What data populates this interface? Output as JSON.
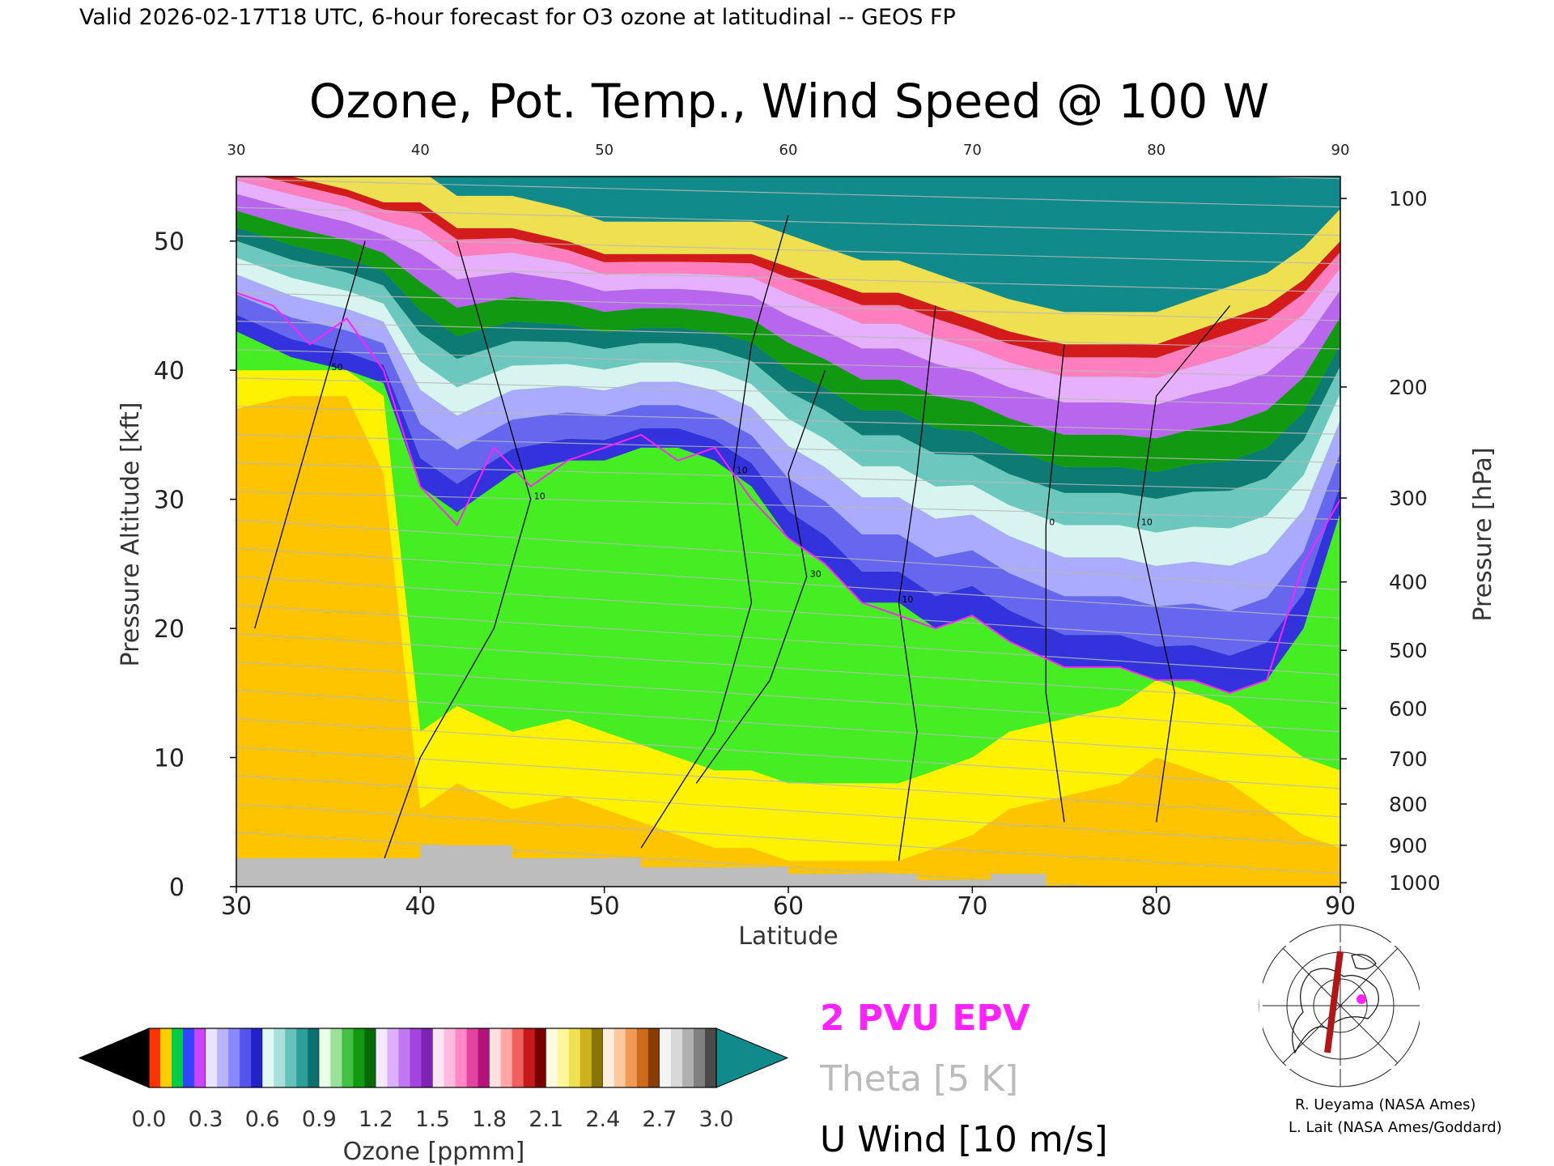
{
  "header": {
    "valid_line": "Valid 2026-02-17T18 UTC, 6-hour forecast for O3 ozone at latitudinal -- GEOS FP"
  },
  "chart_data": {
    "type": "heatmap",
    "title": "Ozone, Pot. Temp., Wind Speed @ 100 W",
    "xlabel": "Latitude",
    "ylabel": "Pressure Altitude [kft]",
    "y2label": "Pressure [hPa]",
    "xlim": [
      30,
      90
    ],
    "ylim": [
      0,
      55
    ],
    "x_ticks": [
      30,
      40,
      50,
      60,
      70,
      80,
      90
    ],
    "x_tick_labels": [
      "30",
      "40",
      "50",
      "60",
      "70",
      "80",
      "90"
    ],
    "y_ticks": [
      0,
      10,
      20,
      30,
      40,
      50
    ],
    "y_tick_labels": [
      "0",
      "10",
      "20",
      "30",
      "40",
      "50"
    ],
    "pressure_ticks": [
      {
        "label": "100",
        "kft": 53.3
      },
      {
        "label": "200",
        "kft": 38.7
      },
      {
        "label": "300",
        "kft": 30.1
      },
      {
        "label": "400",
        "kft": 23.6
      },
      {
        "label": "500",
        "kft": 18.3
      },
      {
        "label": "600",
        "kft": 13.8
      },
      {
        "label": "700",
        "kft": 9.9
      },
      {
        "label": "800",
        "kft": 6.4
      },
      {
        "label": "900",
        "kft": 3.2
      },
      {
        "label": "1000",
        "kft": 0.3
      }
    ],
    "ozone_boundaries": {
      "description_free": true,
      "latitudes": [
        30,
        33,
        36,
        38,
        40,
        42,
        45,
        48,
        50,
        52,
        54,
        56,
        58,
        60,
        62,
        64,
        66,
        68,
        70,
        72,
        75,
        78,
        80,
        82,
        84,
        86,
        88,
        90
      ],
      "tropopause_kft": [
        43,
        41,
        40,
        39,
        31,
        29,
        32,
        33,
        33,
        34,
        34,
        33,
        31,
        27,
        25,
        22,
        22,
        20,
        21,
        19,
        17,
        17,
        16,
        16,
        15,
        16,
        20,
        29
      ],
      "upper_kft": [
        50,
        49,
        48,
        47,
        43,
        42,
        42,
        40,
        39,
        40,
        39,
        38,
        37,
        36,
        35,
        34,
        33,
        32,
        31,
        30,
        29,
        27,
        26,
        25,
        24,
        26,
        30,
        34
      ],
      "top_kft": [
        56,
        55,
        54,
        53,
        53,
        51,
        51,
        50,
        49,
        49,
        49,
        49,
        49,
        48,
        47,
        46,
        46,
        45,
        44,
        43,
        42,
        42,
        42,
        43,
        44,
        45,
        47,
        50
      ],
      "lower_orange_top_kft": [
        37,
        38,
        38,
        32,
        6,
        8,
        6,
        7,
        6,
        5,
        4,
        3,
        3,
        2,
        2,
        2,
        2,
        3,
        4,
        6,
        7,
        8,
        10,
        9,
        8,
        6,
        4,
        3
      ]
    },
    "colorbar": {
      "label": "Ozone [ppmm]",
      "min": 0.0,
      "max": 3.0,
      "tick_labels": [
        "0.0",
        "0.3",
        "0.6",
        "0.9",
        "1.2",
        "1.5",
        "1.8",
        "2.1",
        "2.4",
        "2.7",
        "3.0"
      ],
      "under_color": "#000000",
      "over_color": "#108a8a",
      "band_colors": [
        [
          "#ff3300",
          "#ffcc00",
          "#00cc44",
          "#3344ff",
          "#cc44ff"
        ],
        [
          "#e8e4ff",
          "#b8b4ff",
          "#8888ff",
          "#5555ee",
          "#2222cc"
        ],
        [
          "#e0f8f4",
          "#a8e0dc",
          "#66c2bb",
          "#2c9f98",
          "#0b7070"
        ],
        [
          "#e8ffe8",
          "#9be09b",
          "#44c044",
          "#119911",
          "#066a06"
        ],
        [
          "#f4e8ff",
          "#dcb0ff",
          "#c077f2",
          "#a344de",
          "#7e22b8"
        ],
        [
          "#ffe6f2",
          "#ffbbdd",
          "#ff88c4",
          "#e2449f",
          "#b3137a"
        ],
        [
          "#ffe0e0",
          "#ffa6a6",
          "#f06060",
          "#c61a1a",
          "#7a0000"
        ],
        [
          "#fffbe0",
          "#fff59a",
          "#eee050",
          "#cdb21c",
          "#8a7400"
        ],
        [
          "#ffeedd",
          "#ffc89a",
          "#f09a55",
          "#cc6a1e",
          "#8a3d00"
        ],
        [
          "#f4f4f4",
          "#d8d8d8",
          "#b0b0b0",
          "#808080",
          "#4a4a4a"
        ]
      ]
    },
    "u_wind_contours_kft_path": [
      {
        "label": "10",
        "points": [
          [
            38,
            2
          ],
          [
            40,
            10
          ],
          [
            44,
            20
          ],
          [
            46,
            30
          ],
          [
            44,
            40
          ],
          [
            42,
            50
          ]
        ]
      },
      {
        "label": "10",
        "points": [
          [
            52,
            3
          ],
          [
            56,
            12
          ],
          [
            58,
            22
          ],
          [
            57,
            32
          ],
          [
            58,
            42
          ],
          [
            60,
            52
          ]
        ]
      },
      {
        "label": "30",
        "points": [
          [
            55,
            8
          ],
          [
            59,
            16
          ],
          [
            61,
            24
          ],
          [
            60,
            32
          ],
          [
            62,
            40
          ]
        ]
      },
      {
        "label": "10",
        "points": [
          [
            66,
            2
          ],
          [
            67,
            12
          ],
          [
            66,
            22
          ],
          [
            67,
            32
          ],
          [
            68,
            45
          ]
        ]
      },
      {
        "label": "0",
        "points": [
          [
            75,
            5
          ],
          [
            74,
            15
          ],
          [
            74,
            28
          ],
          [
            75,
            42
          ]
        ]
      },
      {
        "label": "10",
        "points": [
          [
            80,
            5
          ],
          [
            81,
            15
          ],
          [
            79,
            28
          ],
          [
            80,
            38
          ],
          [
            84,
            45
          ]
        ]
      },
      {
        "label": "50",
        "points": [
          [
            31,
            20
          ],
          [
            33,
            30
          ],
          [
            35,
            40
          ],
          [
            37,
            50
          ]
        ]
      }
    ],
    "epv_2pvu_kft": [
      [
        30,
        46
      ],
      [
        32,
        45
      ],
      [
        34,
        42
      ],
      [
        36,
        44
      ],
      [
        38,
        40
      ],
      [
        40,
        31
      ],
      [
        42,
        28
      ],
      [
        44,
        34
      ],
      [
        46,
        31
      ],
      [
        48,
        33
      ],
      [
        50,
        34
      ],
      [
        52,
        35
      ],
      [
        54,
        33
      ],
      [
        56,
        34
      ],
      [
        58,
        30
      ],
      [
        60,
        27
      ],
      [
        62,
        25
      ],
      [
        64,
        22
      ],
      [
        66,
        21
      ],
      [
        68,
        20
      ],
      [
        70,
        21
      ],
      [
        72,
        19
      ],
      [
        75,
        17
      ],
      [
        78,
        17
      ],
      [
        80,
        16
      ],
      [
        82,
        16
      ],
      [
        84,
        15
      ],
      [
        86,
        16
      ],
      [
        88,
        25
      ],
      [
        90,
        30
      ]
    ],
    "legend": [
      "2 PVU EPV",
      "Theta [5 K]",
      "U Wind [10 m/s]"
    ],
    "map_inset": {
      "longitude": "100 W",
      "lat_range": [
        30,
        90
      ]
    }
  },
  "credits": {
    "line1": "R. Ueyama (NASA Ames)",
    "line2": "L. Lait (NASA Ames/Goddard)"
  },
  "colors": {
    "epv": "#ff22ff",
    "theta": "#bbbbbb",
    "uwind": "#000000",
    "topo": "#bdbdbd"
  }
}
